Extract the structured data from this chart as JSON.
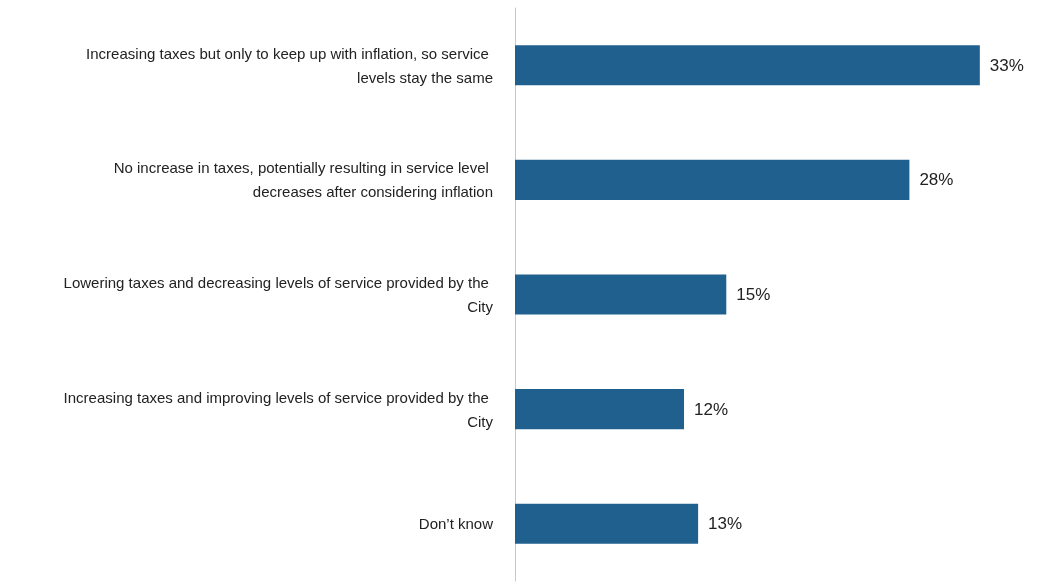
{
  "chart_data": {
    "type": "bar",
    "orientation": "horizontal",
    "categories": [
      "Increasing taxes but only to keep up with inflation, so service levels stay the same",
      "No increase in taxes, potentially resulting in service level decreases after considering inflation",
      "Lowering taxes and decreasing levels of service provided by the City",
      "Increasing taxes and improving levels of service provided by the City",
      "Don’t know"
    ],
    "values": [
      33,
      28,
      15,
      12,
      13
    ],
    "value_labels": [
      "33%",
      "28%",
      "15%",
      "12%",
      "13%"
    ],
    "color": "#20608f"
  }
}
